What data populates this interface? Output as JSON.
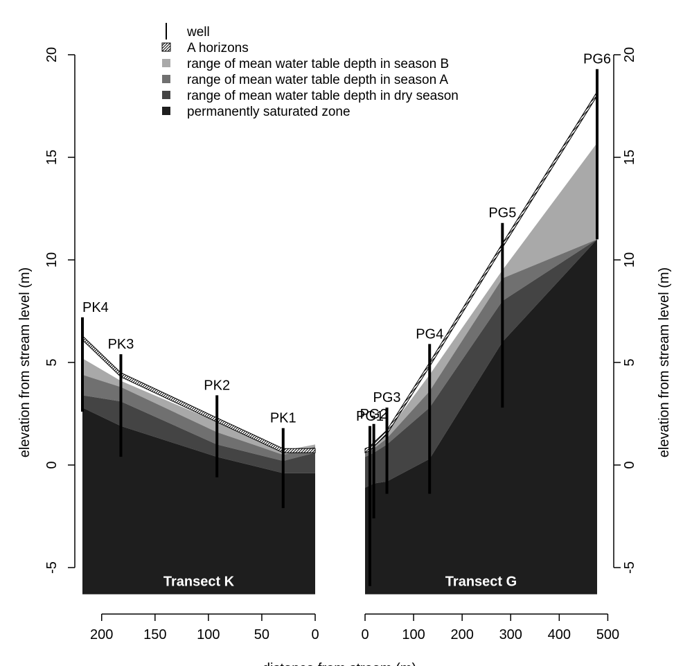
{
  "chart_data": {
    "type": "area",
    "ylabel_left": "elevation from stream level (m)",
    "ylabel_right": "elevation from stream level (m)",
    "xlabel": "distance from stream (m)",
    "ylim": [
      -6.3,
      20
    ],
    "yticks": [
      "-5",
      "0",
      "5",
      "10",
      "15",
      "20"
    ],
    "grid": false,
    "legend_position": "top",
    "legend": [
      {
        "label": "well",
        "symbol": "line",
        "color": "#000000"
      },
      {
        "label": "A horizons",
        "symbol": "hatched",
        "color": "#ffffff"
      },
      {
        "label": "range of mean water table depth in season B",
        "symbol": "square",
        "color": "#a9a9a9"
      },
      {
        "label": "range of mean water table depth in season A",
        "symbol": "square",
        "color": "#707070"
      },
      {
        "label": "range of mean water table depth in dry season",
        "symbol": "square",
        "color": "#444444"
      },
      {
        "label": "permanently saturated zone",
        "symbol": "square",
        "color": "#1e1e1e"
      }
    ],
    "panels": [
      {
        "name": "Transect K",
        "x_reversed": true,
        "xlim": [
          218,
          0
        ],
        "xticks": [
          "200",
          "150",
          "100",
          "50",
          "0"
        ],
        "x": [
          218,
          182,
          92,
          30,
          0
        ],
        "surface": [
          6.3,
          4.5,
          2.3,
          0.8,
          0.8
        ],
        "season_b_top": [
          5.2,
          4.1,
          2.1,
          0.7,
          1.0
        ],
        "season_a_top": [
          4.4,
          3.8,
          1.6,
          0.5,
          0.9
        ],
        "dry_season_top": [
          3.4,
          3.1,
          1.0,
          0.2,
          0.6
        ],
        "saturated_top": [
          2.8,
          1.9,
          0.4,
          -0.4,
          -0.4
        ],
        "bottom": -6.3,
        "wells": [
          {
            "name": "PK4",
            "x": 218,
            "top": 7.2,
            "bottom": 2.6
          },
          {
            "name": "PK3",
            "x": 182,
            "top": 5.4,
            "bottom": 0.4
          },
          {
            "name": "PK2",
            "x": 92,
            "top": 3.4,
            "bottom": -0.6
          },
          {
            "name": "PK1",
            "x": 30,
            "top": 1.8,
            "bottom": -2.1
          }
        ]
      },
      {
        "name": "Transect G",
        "x_reversed": false,
        "xlim": [
          0,
          478
        ],
        "xticks": [
          "0",
          "100",
          "200",
          "300",
          "400",
          "500"
        ],
        "x": [
          0,
          10,
          18,
          45,
          133,
          283,
          478
        ],
        "surface": [
          0.8,
          0.9,
          1.1,
          1.7,
          5.0,
          10.8,
          18.2
        ],
        "season_b_top": [
          0.7,
          0.8,
          1.0,
          1.6,
          4.4,
          9.5,
          15.7
        ],
        "season_a_top": [
          0.6,
          0.7,
          0.8,
          1.3,
          3.6,
          9.1,
          11.0
        ],
        "dry_season_top": [
          0.4,
          0.5,
          0.6,
          1.0,
          2.8,
          8.0,
          11.0
        ],
        "saturated_top": [
          -1.1,
          -1.0,
          -0.9,
          -0.8,
          0.3,
          6.0,
          11.0
        ],
        "bottom": -6.3,
        "wells": [
          {
            "name": "PG1",
            "x": 10,
            "top": 1.9,
            "bottom": -5.9
          },
          {
            "name": "PG2",
            "x": 18,
            "top": 2.0,
            "bottom": -2.6
          },
          {
            "name": "PG3",
            "x": 45,
            "top": 2.8,
            "bottom": -1.4
          },
          {
            "name": "PG4",
            "x": 133,
            "top": 5.9,
            "bottom": -1.4
          },
          {
            "name": "PG5",
            "x": 283,
            "top": 11.8,
            "bottom": 2.8
          },
          {
            "name": "PG6",
            "x": 478,
            "top": 19.3,
            "bottom": 11.0
          }
        ]
      }
    ]
  }
}
